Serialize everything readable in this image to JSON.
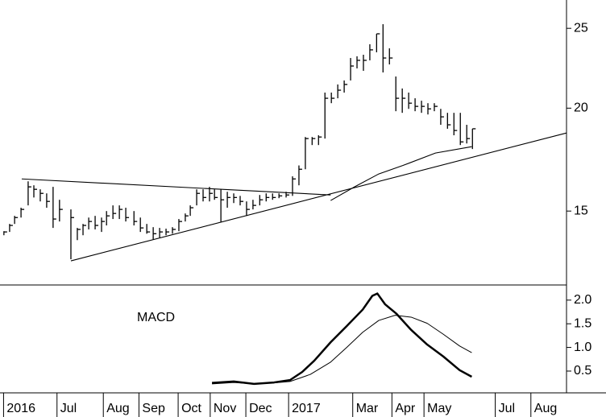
{
  "chart_data": [
    {
      "type": "ohlc",
      "log_scale": true,
      "color": "#000000",
      "xlim": [
        5.1,
        21.0
      ],
      "ylim": [
        12.2,
        27.06
      ],
      "yticks": [
        15,
        20,
        25
      ],
      "x": [
        5.21,
        5.37,
        5.51,
        5.69,
        5.89,
        6.05,
        6.23,
        6.41,
        6.59,
        6.77,
        7.09,
        7.27,
        7.43,
        7.59,
        7.77,
        7.95,
        8.09,
        8.27,
        8.45,
        8.63,
        8.86,
        9.04,
        9.22,
        9.4,
        9.58,
        9.76,
        9.94,
        10.12,
        10.3,
        10.44,
        10.62,
        10.8,
        10.98,
        11.12,
        11.3,
        11.48,
        11.66,
        11.84,
        12.02,
        12.2,
        12.39,
        12.57,
        12.75,
        12.93,
        13.13,
        13.31,
        13.49,
        13.67,
        13.86,
        14.04,
        14.22,
        14.4,
        14.58,
        14.76,
        14.94,
        15.12,
        15.3,
        15.48,
        15.67,
        15.85,
        16.03,
        16.21,
        16.39,
        16.57,
        16.75,
        16.93,
        17.11,
        17.29,
        17.47,
        17.66,
        17.84,
        18.02,
        18.2,
        18.36
      ],
      "high": [
        14.18,
        14.47,
        14.8,
        15.14,
        16.3,
        16.12,
        15.94,
        15.76,
        16.05,
        15.48,
        15.07,
        14.31,
        14.47,
        14.73,
        14.8,
        14.73,
        15.0,
        15.24,
        15.24,
        15.14,
        15.0,
        14.73,
        14.47,
        14.34,
        14.31,
        14.28,
        14.34,
        14.67,
        14.9,
        15.24,
        15.94,
        15.94,
        16.05,
        15.94,
        15.94,
        15.83,
        15.76,
        15.65,
        15.41,
        15.48,
        15.69,
        15.76,
        15.76,
        15.76,
        15.83,
        16.53,
        17.04,
        18.45,
        18.45,
        18.54,
        20.89,
        20.89,
        21.37,
        21.61,
        23.01,
        23.12,
        23.22,
        23.91,
        24.62,
        25.29,
        23.64,
        21.85,
        21.13,
        20.89,
        20.56,
        20.42,
        20.28,
        20.28,
        19.96,
        19.74,
        19.74,
        19.74,
        19.09,
        18.88
      ],
      "low": [
        14.02,
        14.15,
        14.47,
        14.73,
        15.24,
        15.58,
        15.41,
        15.14,
        14.31,
        14.57,
        13.11,
        13.83,
        14.02,
        14.25,
        14.25,
        14.15,
        14.41,
        14.67,
        14.67,
        14.57,
        14.41,
        14.15,
        14.08,
        13.86,
        13.93,
        14.02,
        14.08,
        14.18,
        14.57,
        14.8,
        15.24,
        15.41,
        15.41,
        15.48,
        14.54,
        15.14,
        15.34,
        15.24,
        14.8,
        15.07,
        15.24,
        15.41,
        15.48,
        15.55,
        15.58,
        15.65,
        16.12,
        16.86,
        18.04,
        18.04,
        18.37,
        20.28,
        20.56,
        20.89,
        21.61,
        22.35,
        22.2,
        22.86,
        23.38,
        22.1,
        22.6,
        19.83,
        19.74,
        19.96,
        19.83,
        19.74,
        19.65,
        19.83,
        19.09,
        18.88,
        18.54,
        18.04,
        18.12,
        17.84
      ],
      "close": [
        14.15,
        14.41,
        14.73,
        15.07,
        16.05,
        15.94,
        15.76,
        15.41,
        14.67,
        15.07,
        14.73,
        14.25,
        14.41,
        14.57,
        14.41,
        14.57,
        14.8,
        14.9,
        15.07,
        14.73,
        14.57,
        14.31,
        14.15,
        14.08,
        14.15,
        14.15,
        14.25,
        14.57,
        14.8,
        15.14,
        15.76,
        15.58,
        15.76,
        15.58,
        15.48,
        15.58,
        15.58,
        15.41,
        15.07,
        15.24,
        15.48,
        15.58,
        15.58,
        15.65,
        15.69,
        16.41,
        16.86,
        18.37,
        18.37,
        18.45,
        20.56,
        20.56,
        21.03,
        21.37,
        22.5,
        22.86,
        22.86,
        23.54,
        24.62,
        23.01,
        23.01,
        20.56,
        20.56,
        20.28,
        20.1,
        20.1,
        19.96,
        20.1,
        19.52,
        19.09,
        18.79,
        18.2,
        18.37,
        18.88
      ],
      "lines": [
        {
          "x": [
            5.71,
            14.38
          ],
          "y": [
            16.41,
            15.69
          ]
        },
        {
          "x": [
            7.09,
            21.0
          ],
          "y": [
            13.05,
            18.66
          ]
        },
        {
          "x": [
            14.38,
            15.05,
            15.73,
            16.41,
            17.32,
            18.34
          ],
          "y": [
            15.45,
            16.05,
            16.64,
            17.04,
            17.64,
            17.96
          ]
        }
      ]
    },
    {
      "type": "line",
      "annotation": "MACD",
      "xlim": [
        5.1,
        21.0
      ],
      "ylim": [
        0.04,
        2.32
      ],
      "yticks": [
        {
          "value": 2,
          "label": "2.0"
        },
        1.5,
        {
          "value": 1,
          "label": "1.0"
        },
        0.5
      ],
      "xticks": [
        {
          "value": 5.2,
          "label": "2016"
        },
        {
          "value": 6.7,
          "label": "Jul"
        },
        {
          "value": 8,
          "label": "Aug"
        },
        {
          "value": 9,
          "label": "Sep"
        },
        {
          "value": 10.1,
          "label": "Oct"
        },
        {
          "value": 11,
          "label": "Nov"
        },
        {
          "value": 12,
          "label": "Dec"
        },
        {
          "value": 13.2,
          "label": "2017"
        },
        {
          "value": 15,
          "label": "Mar"
        },
        {
          "value": 16.1,
          "label": "Apr"
        },
        {
          "value": 17,
          "label": "May"
        },
        {
          "value": 19,
          "label": "Jul"
        },
        {
          "value": 20,
          "label": "Aug"
        }
      ],
      "series": [
        {
          "color": "#000000",
          "width": 2.5,
          "x": [
            11.05,
            11.66,
            12.23,
            12.79,
            13.24,
            13.58,
            13.92,
            14.38,
            14.83,
            15.28,
            15.55,
            15.69,
            15.91,
            16.23,
            16.64,
            17.09,
            17.54,
            18.0,
            18.34
          ],
          "values": [
            0.25,
            0.28,
            0.23,
            0.26,
            0.31,
            0.48,
            0.72,
            1.11,
            1.45,
            1.8,
            2.09,
            2.14,
            1.91,
            1.71,
            1.37,
            1.06,
            0.81,
            0.52,
            0.38
          ]
        },
        {
          "color": "#000000",
          "width": 1,
          "x": [
            11.05,
            11.66,
            12.23,
            12.79,
            13.24,
            13.81,
            14.38,
            14.83,
            15.28,
            15.73,
            16.19,
            16.64,
            17.09,
            17.54,
            18.0,
            18.34
          ],
          "values": [
            0.23,
            0.26,
            0.23,
            0.25,
            0.28,
            0.43,
            0.69,
            1.0,
            1.32,
            1.57,
            1.68,
            1.64,
            1.51,
            1.28,
            1.03,
            0.89
          ]
        }
      ]
    }
  ]
}
